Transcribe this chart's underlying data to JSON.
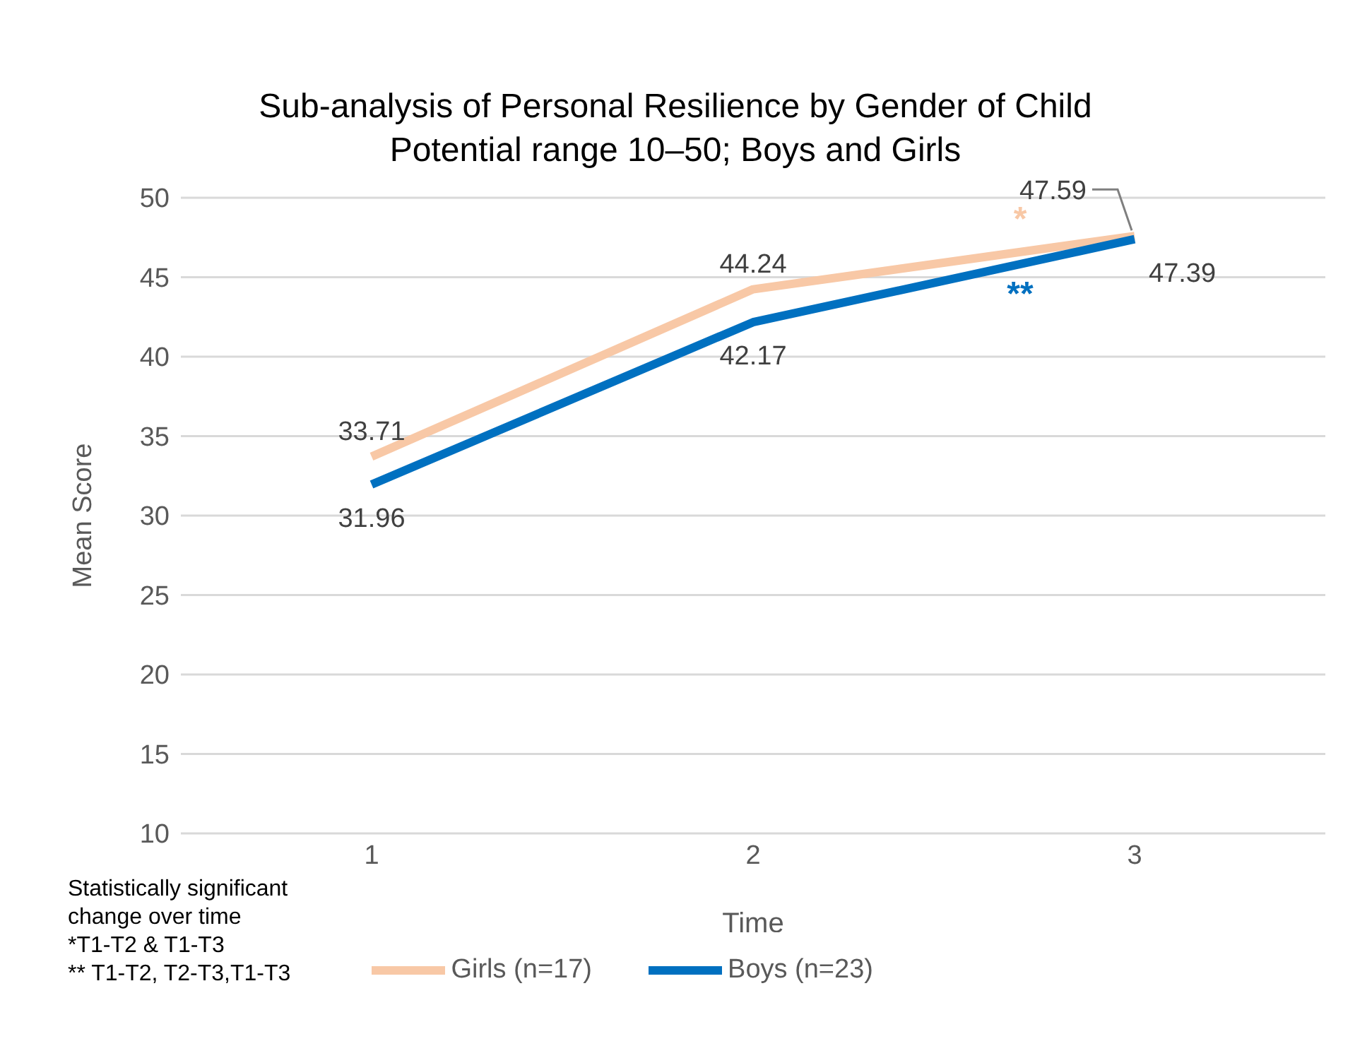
{
  "chart_data": {
    "type": "line",
    "title": "Sub-analysis of Personal Resilience by Gender of Child",
    "subtitle": "Potential range 10–50; Boys and Girls",
    "xlabel": "Time",
    "ylabel": "Mean Score",
    "categories": [
      "1",
      "2",
      "3"
    ],
    "series": [
      {
        "name": "Girls (n=17)",
        "color": "#f8c8a6",
        "values": [
          33.71,
          44.24,
          47.59
        ]
      },
      {
        "name": "Boys (n=23)",
        "color": "#0070c0",
        "values": [
          31.96,
          42.17,
          47.39
        ]
      }
    ],
    "ylim": [
      10,
      50
    ],
    "yticks": [
      10,
      15,
      20,
      25,
      30,
      35,
      40,
      45,
      50
    ],
    "grid": "y",
    "legend": "bottom",
    "marker": "none",
    "line_style": "solid",
    "data_labels": true,
    "annotations": [
      "Statistically significant\nchange over time\n*T1-T2 & T1-T3\n** T1-T2, T2-T3,T1-T3",
      "*",
      "**"
    ]
  }
}
